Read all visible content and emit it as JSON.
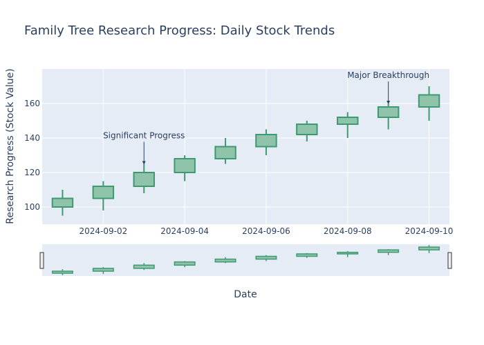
{
  "chart_data": {
    "type": "candlestick",
    "title": "Family Tree Research Progress: Daily Stock Trends",
    "xlabel": "Date",
    "ylabel": "Research Progress (Stock Value)",
    "x_range": [
      "2024-09-01",
      "2024-09-10"
    ],
    "ylim": [
      90,
      180
    ],
    "y_ticks": [
      100,
      120,
      140,
      160
    ],
    "x_tick_labels": [
      "2024-09-02",
      "2024-09-04",
      "2024-09-06",
      "2024-09-08",
      "2024-09-10"
    ],
    "grid": true,
    "rangeslider": true,
    "colors": {
      "increasing_line": "#3d9970",
      "increasing_fill": "#8fc3aa",
      "plot_bg": "#e5ecf6",
      "text": "#2a3f5f"
    },
    "candles": [
      {
        "date": "2024-09-01",
        "open": 100,
        "high": 110,
        "low": 95,
        "close": 105
      },
      {
        "date": "2024-09-02",
        "open": 105,
        "high": 115,
        "low": 98,
        "close": 112
      },
      {
        "date": "2024-09-03",
        "open": 112,
        "high": 125,
        "low": 108,
        "close": 120
      },
      {
        "date": "2024-09-04",
        "open": 120,
        "high": 130,
        "low": 115,
        "close": 128
      },
      {
        "date": "2024-09-05",
        "open": 128,
        "high": 140,
        "low": 125,
        "close": 135
      },
      {
        "date": "2024-09-06",
        "open": 135,
        "high": 145,
        "low": 130,
        "close": 142
      },
      {
        "date": "2024-09-07",
        "open": 142,
        "high": 150,
        "low": 138,
        "close": 148
      },
      {
        "date": "2024-09-08",
        "open": 148,
        "high": 155,
        "low": 140,
        "close": 152
      },
      {
        "date": "2024-09-09",
        "open": 152,
        "high": 160,
        "low": 145,
        "close": 158
      },
      {
        "date": "2024-09-10",
        "open": 158,
        "high": 170,
        "low": 150,
        "close": 165
      }
    ],
    "annotations": [
      {
        "text": "Significant Progress",
        "date": "2024-09-03",
        "value": 125
      },
      {
        "text": "Major Breakthrough",
        "date": "2024-09-09",
        "value": 160
      }
    ]
  }
}
